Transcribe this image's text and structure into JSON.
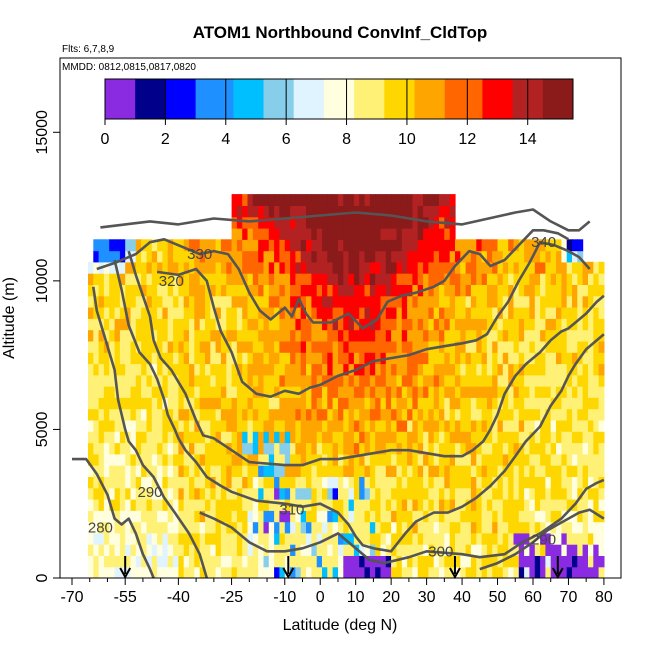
{
  "chart_data": {
    "type": "heatmap",
    "title": "ATOM1 Northbound ConvInf_CldTop",
    "subtitle_flights": "Flts: 6,7,8,9",
    "subtitle_dates": "MMDD: 0812,0815,0817,0820",
    "xlabel": "Latitude (deg N)",
    "ylabel": "Altitude (m)",
    "xlim": [
      -70,
      82
    ],
    "ylim": [
      0,
      17500
    ],
    "x_ticks": [
      -70,
      -55,
      -40,
      -25,
      -10,
      0,
      10,
      20,
      30,
      40,
      50,
      60,
      70,
      80
    ],
    "x_tick_labels": [
      "-70",
      "-55",
      "-40",
      "-25",
      "-10",
      "0",
      "10",
      "20",
      "30",
      "40",
      "50",
      "60",
      "70",
      "80"
    ],
    "x_minor_ticks": [
      -65,
      -60,
      -50,
      -45,
      -35,
      -30,
      -20,
      -15,
      -5,
      5,
      15,
      25,
      35,
      45,
      55,
      65,
      75
    ],
    "y_ticks": [
      0,
      5000,
      10000,
      15000
    ],
    "y_tick_labels": [
      "0",
      "5000",
      "10000",
      "15000"
    ],
    "colorbar": {
      "min": 0,
      "max": 15.5,
      "ticks": [
        0,
        2,
        4,
        6,
        8,
        10,
        12,
        14
      ],
      "tick_labels": [
        "0",
        "2",
        "4",
        "6",
        "8",
        "10",
        "12",
        "14"
      ],
      "colors": [
        "#8a2be2",
        "#00008b",
        "#0000ff",
        "#1e90ff",
        "#00bfff",
        "#87ceeb",
        "#e0f4ff",
        "#ffffe0",
        "#fff176",
        "#ffd700",
        "#ffa500",
        "#ff6600",
        "#ff0000",
        "#b22222",
        "#8b1a1a"
      ]
    },
    "contours": [
      {
        "label": "280",
        "label_pos": [
          -62,
          1700
        ],
        "points": [
          [
            -70,
            4000
          ],
          [
            -66,
            4000
          ],
          [
            -63,
            3500
          ],
          [
            -60,
            2800
          ],
          [
            -58,
            2000
          ],
          [
            -56,
            1800
          ],
          [
            -54,
            2000
          ],
          [
            -52,
            1500
          ],
          [
            -50,
            800
          ],
          [
            -48,
            300
          ],
          [
            -47,
            0
          ]
        ]
      },
      {
        "label": "290",
        "label_pos": [
          -48,
          2900
        ],
        "points": [
          [
            -64,
            9800
          ],
          [
            -63,
            9000
          ],
          [
            -61,
            8200
          ],
          [
            -58,
            7000
          ],
          [
            -57,
            6000
          ],
          [
            -55,
            5000
          ],
          [
            -54,
            4600
          ],
          [
            -52,
            4300
          ],
          [
            -50,
            3800
          ],
          [
            -47,
            3400
          ],
          [
            -44,
            2700
          ],
          [
            -41,
            2200
          ],
          [
            -37,
            1500
          ],
          [
            -34,
            800
          ],
          [
            -32,
            0
          ]
        ]
      },
      {
        "label": "290",
        "label_pos": [
          63,
          1300
        ],
        "points": [
          [
            45,
            300
          ],
          [
            50,
            500
          ],
          [
            55,
            800
          ],
          [
            60,
            1200
          ],
          [
            64,
            1600
          ],
          [
            67,
            1800
          ],
          [
            70,
            2000
          ],
          [
            73,
            2200
          ],
          [
            76,
            2300
          ],
          [
            80,
            2000
          ]
        ]
      },
      {
        "label": "300",
        "label_pos": [
          34,
          900
        ],
        "points": [
          [
            -34,
            2200
          ],
          [
            -30,
            2000
          ],
          [
            -25,
            1700
          ],
          [
            -20,
            1200
          ],
          [
            -15,
            900
          ],
          [
            -10,
            900
          ],
          [
            -5,
            1000
          ],
          [
            0,
            1200
          ],
          [
            5,
            1500
          ],
          [
            10,
            1000
          ],
          [
            14,
            600
          ],
          [
            18,
            500
          ],
          [
            25,
            700
          ],
          [
            30,
            900
          ],
          [
            40,
            800
          ],
          [
            45,
            700
          ],
          [
            52,
            800
          ],
          [
            57,
            1200
          ],
          [
            62,
            1500
          ],
          [
            68,
            2000
          ],
          [
            72,
            2500
          ],
          [
            75,
            3000
          ],
          [
            78,
            3200
          ],
          [
            80,
            3300
          ]
        ]
      },
      {
        "label": "",
        "label_pos": [
          0,
          0
        ],
        "points": [
          [
            -58,
            10700
          ],
          [
            -56,
            9700
          ],
          [
            -54,
            8500
          ],
          [
            -51,
            7600
          ],
          [
            -48,
            7200
          ],
          [
            -46,
            6700
          ],
          [
            -44,
            6000
          ],
          [
            -43,
            5500
          ],
          [
            -41,
            5000
          ],
          [
            -40,
            4700
          ],
          [
            -38,
            4300
          ],
          [
            -35,
            3900
          ],
          [
            -32,
            3400
          ],
          [
            -28,
            3100
          ],
          [
            -25,
            2900
          ],
          [
            -18,
            2600
          ],
          [
            -10,
            2500
          ],
          [
            -5,
            2400
          ],
          [
            0,
            2500
          ],
          [
            5,
            2200
          ],
          [
            8,
            1800
          ],
          [
            10,
            1400
          ],
          [
            12,
            1100
          ],
          [
            15,
            1000
          ],
          [
            20,
            900
          ],
          [
            24,
            1500
          ],
          [
            27,
            1900
          ],
          [
            32,
            2200
          ],
          [
            36,
            2200
          ],
          [
            40,
            2400
          ],
          [
            44,
            2700
          ],
          [
            48,
            3100
          ],
          [
            52,
            3600
          ],
          [
            55,
            4100
          ],
          [
            58,
            4600
          ],
          [
            62,
            5100
          ],
          [
            65,
            5800
          ],
          [
            68,
            6300
          ],
          [
            70,
            6800
          ],
          [
            72,
            7200
          ],
          [
            75,
            7700
          ],
          [
            78,
            8000
          ],
          [
            80,
            8200
          ]
        ]
      },
      {
        "label": "310",
        "label_pos": [
          -8,
          2300
        ],
        "points": [
          [
            -54,
            11000
          ],
          [
            -52,
            10200
          ],
          [
            -50,
            9500
          ],
          [
            -48,
            8800
          ],
          [
            -47,
            8000
          ],
          [
            -45,
            7400
          ],
          [
            -42,
            7000
          ],
          [
            -40,
            6600
          ],
          [
            -38,
            6200
          ],
          [
            -35,
            5300
          ],
          [
            -33,
            4800
          ],
          [
            -30,
            4700
          ],
          [
            -25,
            4300
          ],
          [
            -20,
            3900
          ],
          [
            -10,
            3800
          ],
          [
            -5,
            3800
          ],
          [
            0,
            4000
          ],
          [
            5,
            4000
          ],
          [
            10,
            4100
          ],
          [
            15,
            4200
          ],
          [
            20,
            4300
          ],
          [
            25,
            4300
          ],
          [
            30,
            4200
          ],
          [
            35,
            4100
          ],
          [
            40,
            4100
          ],
          [
            43,
            4300
          ],
          [
            46,
            4600
          ],
          [
            48,
            5000
          ],
          [
            50,
            5500
          ],
          [
            52,
            6200
          ],
          [
            55,
            6800
          ],
          [
            58,
            7200
          ],
          [
            62,
            7600
          ],
          [
            65,
            8000
          ],
          [
            68,
            8300
          ],
          [
            70,
            8400
          ],
          [
            72,
            8600
          ],
          [
            75,
            8900
          ],
          [
            78,
            9300
          ],
          [
            80,
            9500
          ]
        ]
      },
      {
        "label": "320",
        "label_pos": [
          -42,
          10000
        ],
        "points": [
          [
            -46,
            10300
          ],
          [
            -40,
            10200
          ],
          [
            -35,
            10400
          ],
          [
            -32,
            10000
          ],
          [
            -30,
            9100
          ],
          [
            -28,
            8300
          ],
          [
            -25,
            7600
          ],
          [
            -22,
            6600
          ],
          [
            -18,
            6200
          ],
          [
            -14,
            6100
          ],
          [
            -10,
            6300
          ],
          [
            -6,
            6200
          ],
          [
            -3,
            6400
          ],
          [
            0,
            6500
          ],
          [
            5,
            6800
          ],
          [
            10,
            7000
          ],
          [
            15,
            7300
          ],
          [
            20,
            7400
          ],
          [
            25,
            7500
          ],
          [
            30,
            7700
          ],
          [
            35,
            7800
          ],
          [
            40,
            7900
          ],
          [
            44,
            8000
          ],
          [
            47,
            8200
          ],
          [
            50,
            8800
          ],
          [
            53,
            9300
          ],
          [
            56,
            10000
          ],
          [
            59,
            10600
          ],
          [
            62,
            11300
          ],
          [
            66,
            11200
          ],
          [
            70,
            11000
          ],
          [
            73,
            10800
          ],
          [
            76,
            10400
          ]
        ]
      },
      {
        "label": "330",
        "label_pos": [
          -34,
          10900
        ],
        "points": [
          [
            -63,
            10400
          ],
          [
            -58,
            10600
          ],
          [
            -52,
            10900
          ],
          [
            -48,
            11300
          ],
          [
            -44,
            11400
          ],
          [
            -38,
            11100
          ],
          [
            -34,
            10900
          ],
          [
            -30,
            11000
          ],
          [
            -26,
            10900
          ],
          [
            -23,
            10400
          ],
          [
            -20,
            9600
          ],
          [
            -17,
            9000
          ],
          [
            -14,
            8700
          ],
          [
            -10,
            9100
          ],
          [
            -8,
            8800
          ],
          [
            -6,
            9400
          ],
          [
            -4,
            8900
          ],
          [
            -2,
            8600
          ],
          [
            3,
            8600
          ],
          [
            8,
            8900
          ],
          [
            12,
            8400
          ],
          [
            16,
            8700
          ],
          [
            19,
            9300
          ],
          [
            23,
            9500
          ],
          [
            27,
            9600
          ],
          [
            32,
            9800
          ],
          [
            35,
            10000
          ],
          [
            38,
            10500
          ],
          [
            42,
            11000
          ],
          [
            45,
            10900
          ],
          [
            48,
            10500
          ],
          [
            52,
            10700
          ],
          [
            56,
            11200
          ],
          [
            60,
            11700
          ],
          [
            63,
            11700
          ],
          [
            67,
            11600
          ],
          [
            70,
            11400
          ]
        ]
      },
      {
        "label": "340",
        "label_pos": [
          63,
          11300
        ],
        "points": [
          [
            -62,
            11800
          ],
          [
            -55,
            11900
          ],
          [
            -48,
            12000
          ],
          [
            -40,
            11900
          ],
          [
            -30,
            12100
          ],
          [
            -20,
            12000
          ],
          [
            -10,
            12100
          ],
          [
            0,
            12200
          ],
          [
            10,
            12300
          ],
          [
            20,
            12200
          ],
          [
            30,
            12000
          ],
          [
            40,
            11900
          ],
          [
            55,
            12300
          ],
          [
            60,
            12400
          ],
          [
            65,
            12000
          ],
          [
            70,
            11700
          ],
          [
            73,
            11700
          ],
          [
            76,
            12000
          ]
        ]
      }
    ],
    "arrows_latitude": [
      -55,
      -9,
      38,
      67
    ]
  }
}
